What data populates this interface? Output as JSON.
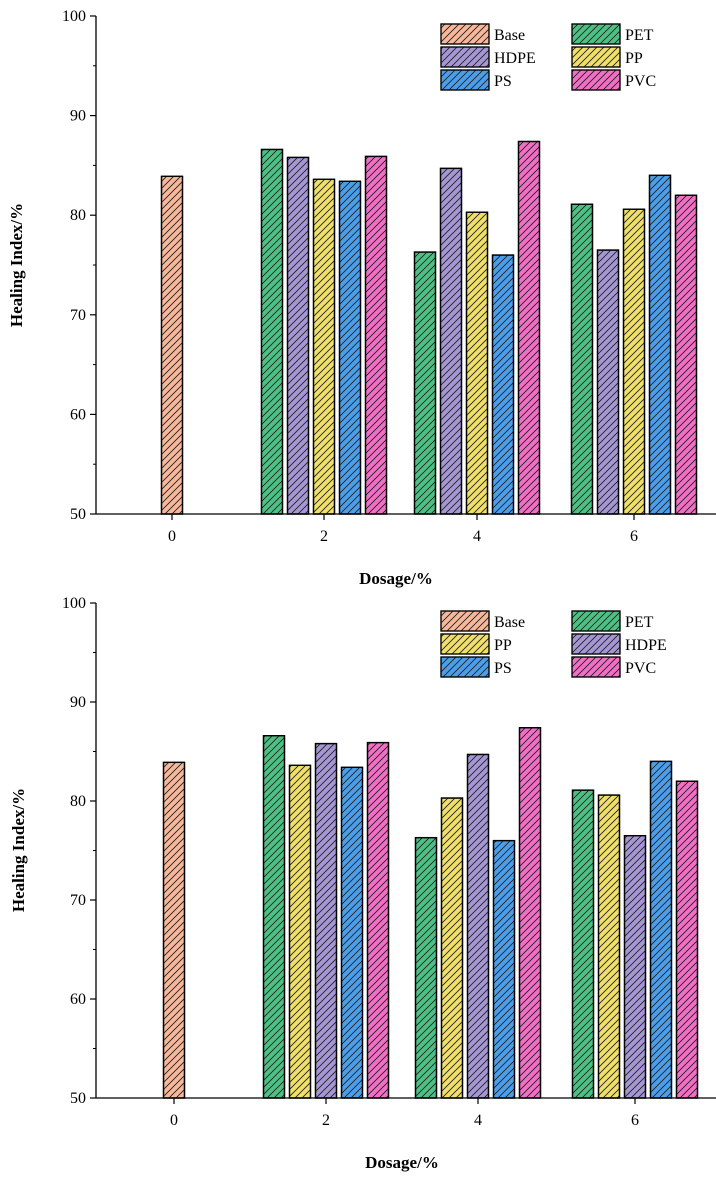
{
  "colors": {
    "Base": "#F7B79A",
    "PET": "#4DC184",
    "HDPE": "#A596D4",
    "PP": "#F0E06A",
    "PS": "#4A9EEA",
    "PVC": "#F26FC6",
    "hatch": "#222222",
    "axis": "#000000"
  },
  "chart_data": [
    {
      "type": "bar",
      "categories": [
        "0",
        "2",
        "4",
        "6"
      ],
      "xlabel": "Dosage/%",
      "ylabel": "Healing Index/%",
      "ylim": [
        50,
        100
      ],
      "yticks": [
        50,
        60,
        70,
        80,
        90,
        100
      ],
      "legend_position": "top-right",
      "legend_order": [
        "Base",
        "PET",
        "HDPE",
        "PP",
        "PS",
        "PVC"
      ],
      "series": [
        {
          "name": "Base",
          "values": [
            83.9,
            null,
            null,
            null
          ]
        },
        {
          "name": "PET",
          "values": [
            null,
            86.6,
            76.3,
            81.1
          ]
        },
        {
          "name": "HDPE",
          "values": [
            null,
            85.8,
            84.7,
            76.5
          ]
        },
        {
          "name": "PP",
          "values": [
            null,
            83.6,
            80.3,
            80.6
          ]
        },
        {
          "name": "PS",
          "values": [
            null,
            83.4,
            76.0,
            84.0
          ]
        },
        {
          "name": "PVC",
          "values": [
            null,
            85.9,
            87.4,
            82.0
          ]
        }
      ]
    },
    {
      "type": "bar",
      "categories": [
        "0",
        "2",
        "4",
        "6"
      ],
      "xlabel": "Dosage/%",
      "ylabel": "Healing Index/%",
      "ylim": [
        50,
        100
      ],
      "yticks": [
        50,
        60,
        70,
        80,
        90,
        100
      ],
      "legend_position": "top-right",
      "legend_order": [
        "Base",
        "PET",
        "PP",
        "HDPE",
        "PS",
        "PVC"
      ],
      "series": [
        {
          "name": "Base",
          "values": [
            83.9,
            null,
            null,
            null
          ]
        },
        {
          "name": "PET",
          "values": [
            null,
            86.6,
            76.3,
            81.1
          ]
        },
        {
          "name": "PP",
          "values": [
            null,
            83.6,
            80.3,
            80.6
          ]
        },
        {
          "name": "HDPE",
          "values": [
            null,
            85.8,
            84.7,
            76.5
          ]
        },
        {
          "name": "PS",
          "values": [
            null,
            83.4,
            76.0,
            84.0
          ]
        },
        {
          "name": "PVC",
          "values": [
            null,
            85.9,
            87.4,
            82.0
          ]
        }
      ]
    }
  ]
}
